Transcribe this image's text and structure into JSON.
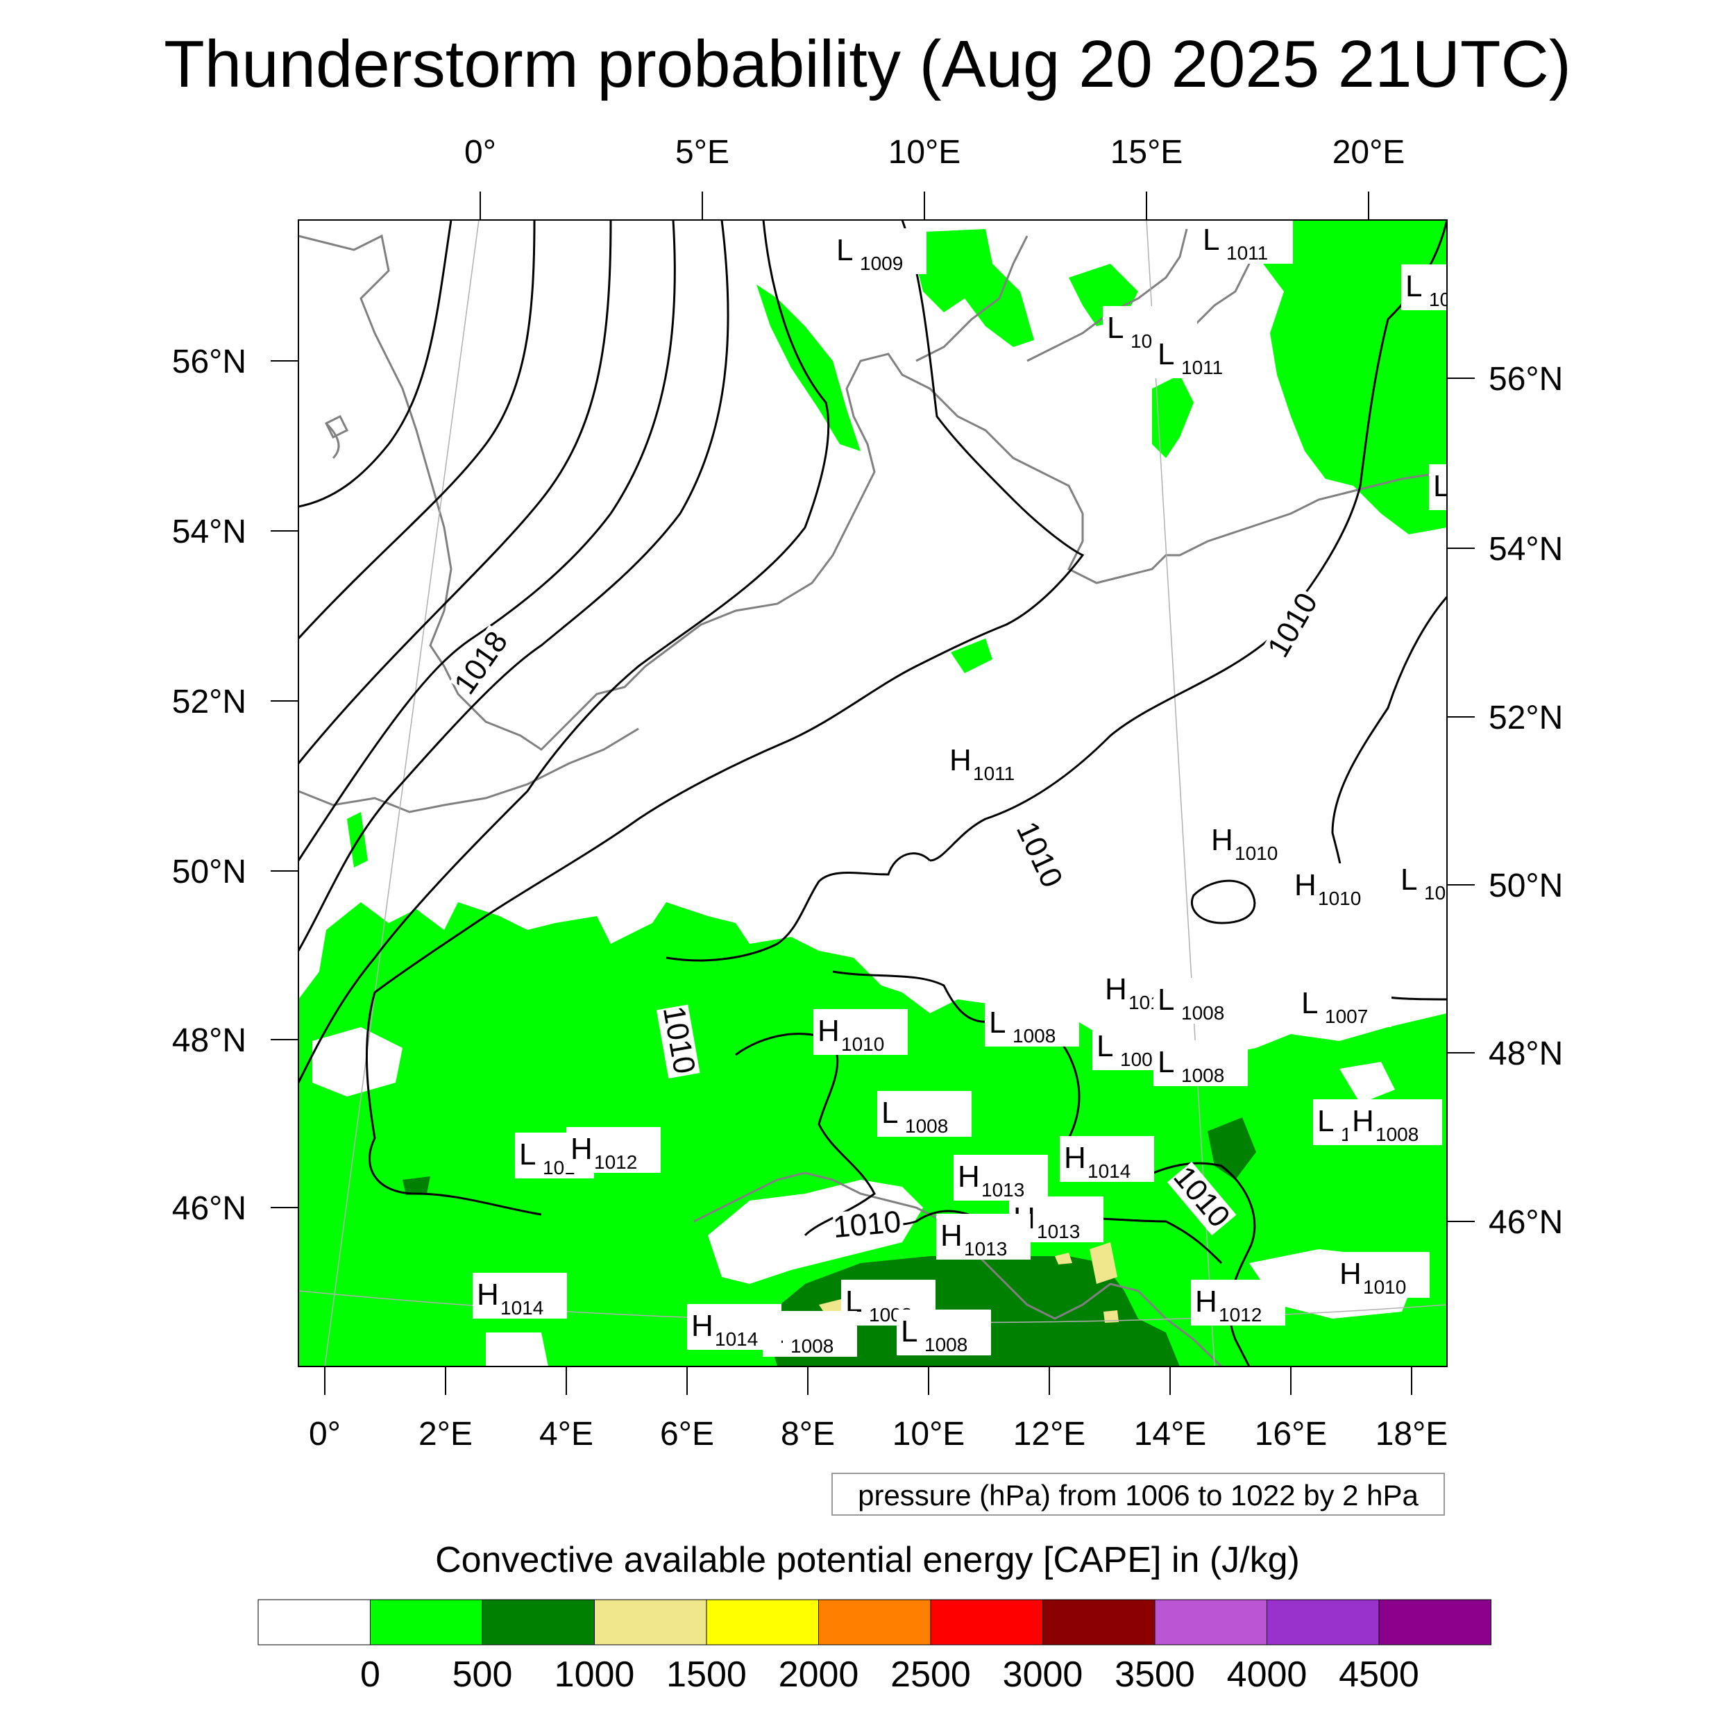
{
  "title": "Thunderstorm probability (Aug 20 2025 21UTC)",
  "map": {
    "top_lon_labels": [
      "0°",
      "5°E",
      "10°E",
      "15°E",
      "20°E"
    ],
    "bottom_lon_labels": [
      "0°",
      "2°E",
      "4°E",
      "6°E",
      "8°E",
      "10°E",
      "12°E",
      "14°E",
      "16°E",
      "18°E"
    ],
    "left_lat_labels": [
      "56°N",
      "54°N",
      "52°N",
      "50°N",
      "48°N",
      "46°N"
    ],
    "right_lat_labels": [
      "56°N",
      "54°N",
      "52°N",
      "50°N",
      "48°N",
      "46°N"
    ],
    "contour_labels": [
      "1018",
      "1010",
      "1010",
      "1010",
      "1010",
      "1010"
    ],
    "pressure_centers": [
      {
        "type": "L",
        "value": "1009"
      },
      {
        "type": "L",
        "value": "1011"
      },
      {
        "type": "L",
        "value": "10"
      },
      {
        "type": "L",
        "value": "1011"
      },
      {
        "type": "L",
        "value": "1011"
      },
      {
        "type": "L",
        "value": ""
      },
      {
        "type": "H",
        "value": "1011"
      },
      {
        "type": "H",
        "value": "1010"
      },
      {
        "type": "H",
        "value": "1010"
      },
      {
        "type": "L",
        "value": "100"
      },
      {
        "type": "H",
        "value": "101"
      },
      {
        "type": "L",
        "value": "1008"
      },
      {
        "type": "L",
        "value": "1007"
      },
      {
        "type": "L",
        "value": "1008"
      },
      {
        "type": "H",
        "value": "1010"
      },
      {
        "type": "L",
        "value": "1008"
      },
      {
        "type": "L",
        "value": "1008"
      },
      {
        "type": "L",
        "value": "1008"
      },
      {
        "type": "L",
        "value": "1"
      },
      {
        "type": "H",
        "value": "1008"
      },
      {
        "type": "L",
        "value": "101"
      },
      {
        "type": "H",
        "value": "1012"
      },
      {
        "type": "H",
        "value": "1014"
      },
      {
        "type": "H",
        "value": "1013"
      },
      {
        "type": "H",
        "value": "1013"
      },
      {
        "type": "H",
        "value": "1013"
      },
      {
        "type": "H",
        "value": "1010"
      },
      {
        "type": "H",
        "value": "1014"
      },
      {
        "type": "L",
        "value": "1008"
      },
      {
        "type": "L",
        "value": "1008"
      },
      {
        "type": "H",
        "value": "1012"
      },
      {
        "type": "H",
        "value": "1014"
      },
      {
        "type": "L",
        "value": "1008"
      }
    ]
  },
  "info_text": "pressure (hPa) from 1006 to 1022 by 2 hPa",
  "colorbar": {
    "title": "Convective available potential energy [CAPE] in (J/kg)",
    "tick_labels": [
      "0",
      "500",
      "1000",
      "1500",
      "2000",
      "2500",
      "3000",
      "3500",
      "4000",
      "4500"
    ],
    "colors": [
      "#ffffff",
      "#00ff00",
      "#008000",
      "#f0e68c",
      "#ffff00",
      "#ff8000",
      "#ff0000",
      "#8b0000",
      "#ba55d3",
      "#9932cc",
      "#8b008b"
    ]
  }
}
